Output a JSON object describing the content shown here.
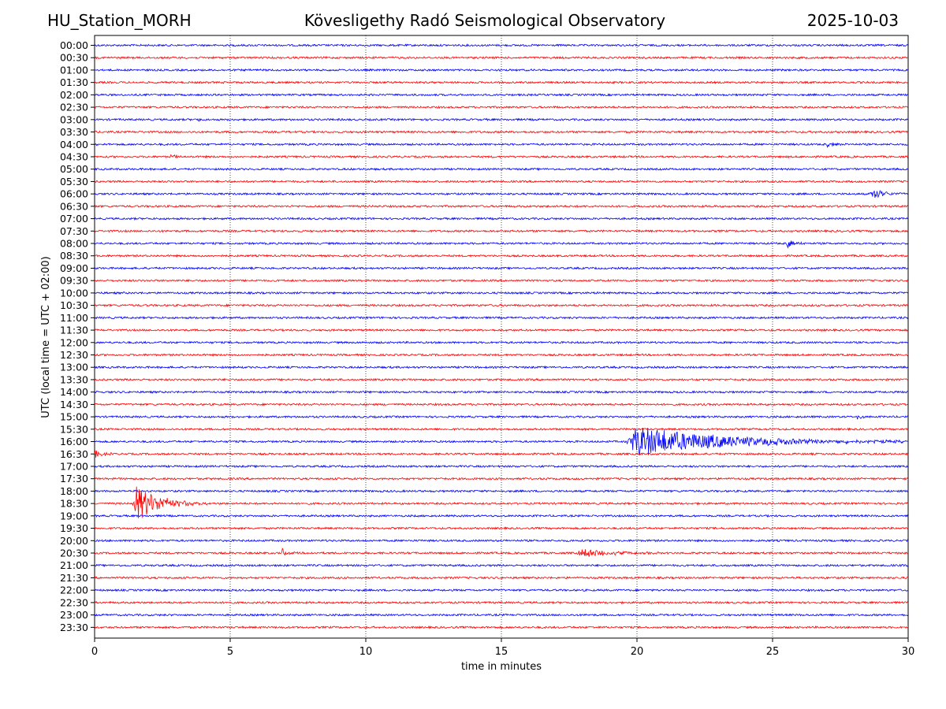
{
  "header": {
    "station": "HU_Station_MORH",
    "observatory": "Kövesligethy Radó Seismological Observatory",
    "date": "2025-10-03"
  },
  "chart_data": {
    "type": "line",
    "title": "Kövesligethy Radó Seismological Observatory",
    "xlabel": "time in minutes",
    "ylabel": "UTC (local time = UTC + 02:00)",
    "xlim": [
      0,
      30
    ],
    "xticks": [
      0,
      5,
      10,
      15,
      20,
      25,
      30
    ],
    "grid": "vertical dotted at x ticks",
    "trace_colors": [
      "#0000ff",
      "#ff0000"
    ],
    "rows": [
      "00:00",
      "00:30",
      "01:00",
      "01:30",
      "02:00",
      "02:30",
      "03:00",
      "03:30",
      "04:00",
      "04:30",
      "05:00",
      "05:30",
      "06:00",
      "06:30",
      "07:00",
      "07:30",
      "08:00",
      "08:30",
      "09:00",
      "09:30",
      "10:00",
      "10:30",
      "11:00",
      "11:30",
      "12:00",
      "12:30",
      "13:00",
      "13:30",
      "14:00",
      "14:30",
      "15:00",
      "15:30",
      "16:00",
      "16:30",
      "17:00",
      "17:30",
      "18:00",
      "18:30",
      "19:00",
      "19:30",
      "20:00",
      "20:30",
      "21:00",
      "21:30",
      "22:00",
      "22:30",
      "23:00",
      "23:30"
    ],
    "noise_level": 1,
    "events": [
      {
        "row": "03:00",
        "start_min": 3.8,
        "duration_min": 0.3,
        "amplitude": 1.5
      },
      {
        "row": "04:00",
        "start_min": 27.0,
        "duration_min": 0.8,
        "amplitude": 2.0
      },
      {
        "row": "04:30",
        "start_min": 2.8,
        "duration_min": 0.6,
        "amplitude": 2.0
      },
      {
        "row": "06:00",
        "start_min": 28.6,
        "duration_min": 1.4,
        "amplitude": 4.0
      },
      {
        "row": "08:00",
        "start_min": 25.5,
        "duration_min": 1.0,
        "amplitude": 3.0
      },
      {
        "row": "15:00",
        "start_min": 28.1,
        "duration_min": 0.8,
        "amplitude": 1.8
      },
      {
        "row": "16:00",
        "start_min": 19.6,
        "duration_min": 10.4,
        "amplitude": 10.0
      },
      {
        "row": "16:30",
        "start_min": 0.0,
        "duration_min": 0.8,
        "amplitude": 2.5
      },
      {
        "row": "18:30",
        "start_min": 1.4,
        "duration_min": 2.8,
        "amplitude": 12.0
      },
      {
        "row": "20:30",
        "start_min": 6.9,
        "duration_min": 0.6,
        "amplitude": 3.0
      },
      {
        "row": "20:30",
        "start_min": 17.8,
        "duration_min": 3.5,
        "amplitude": 3.0
      }
    ]
  }
}
